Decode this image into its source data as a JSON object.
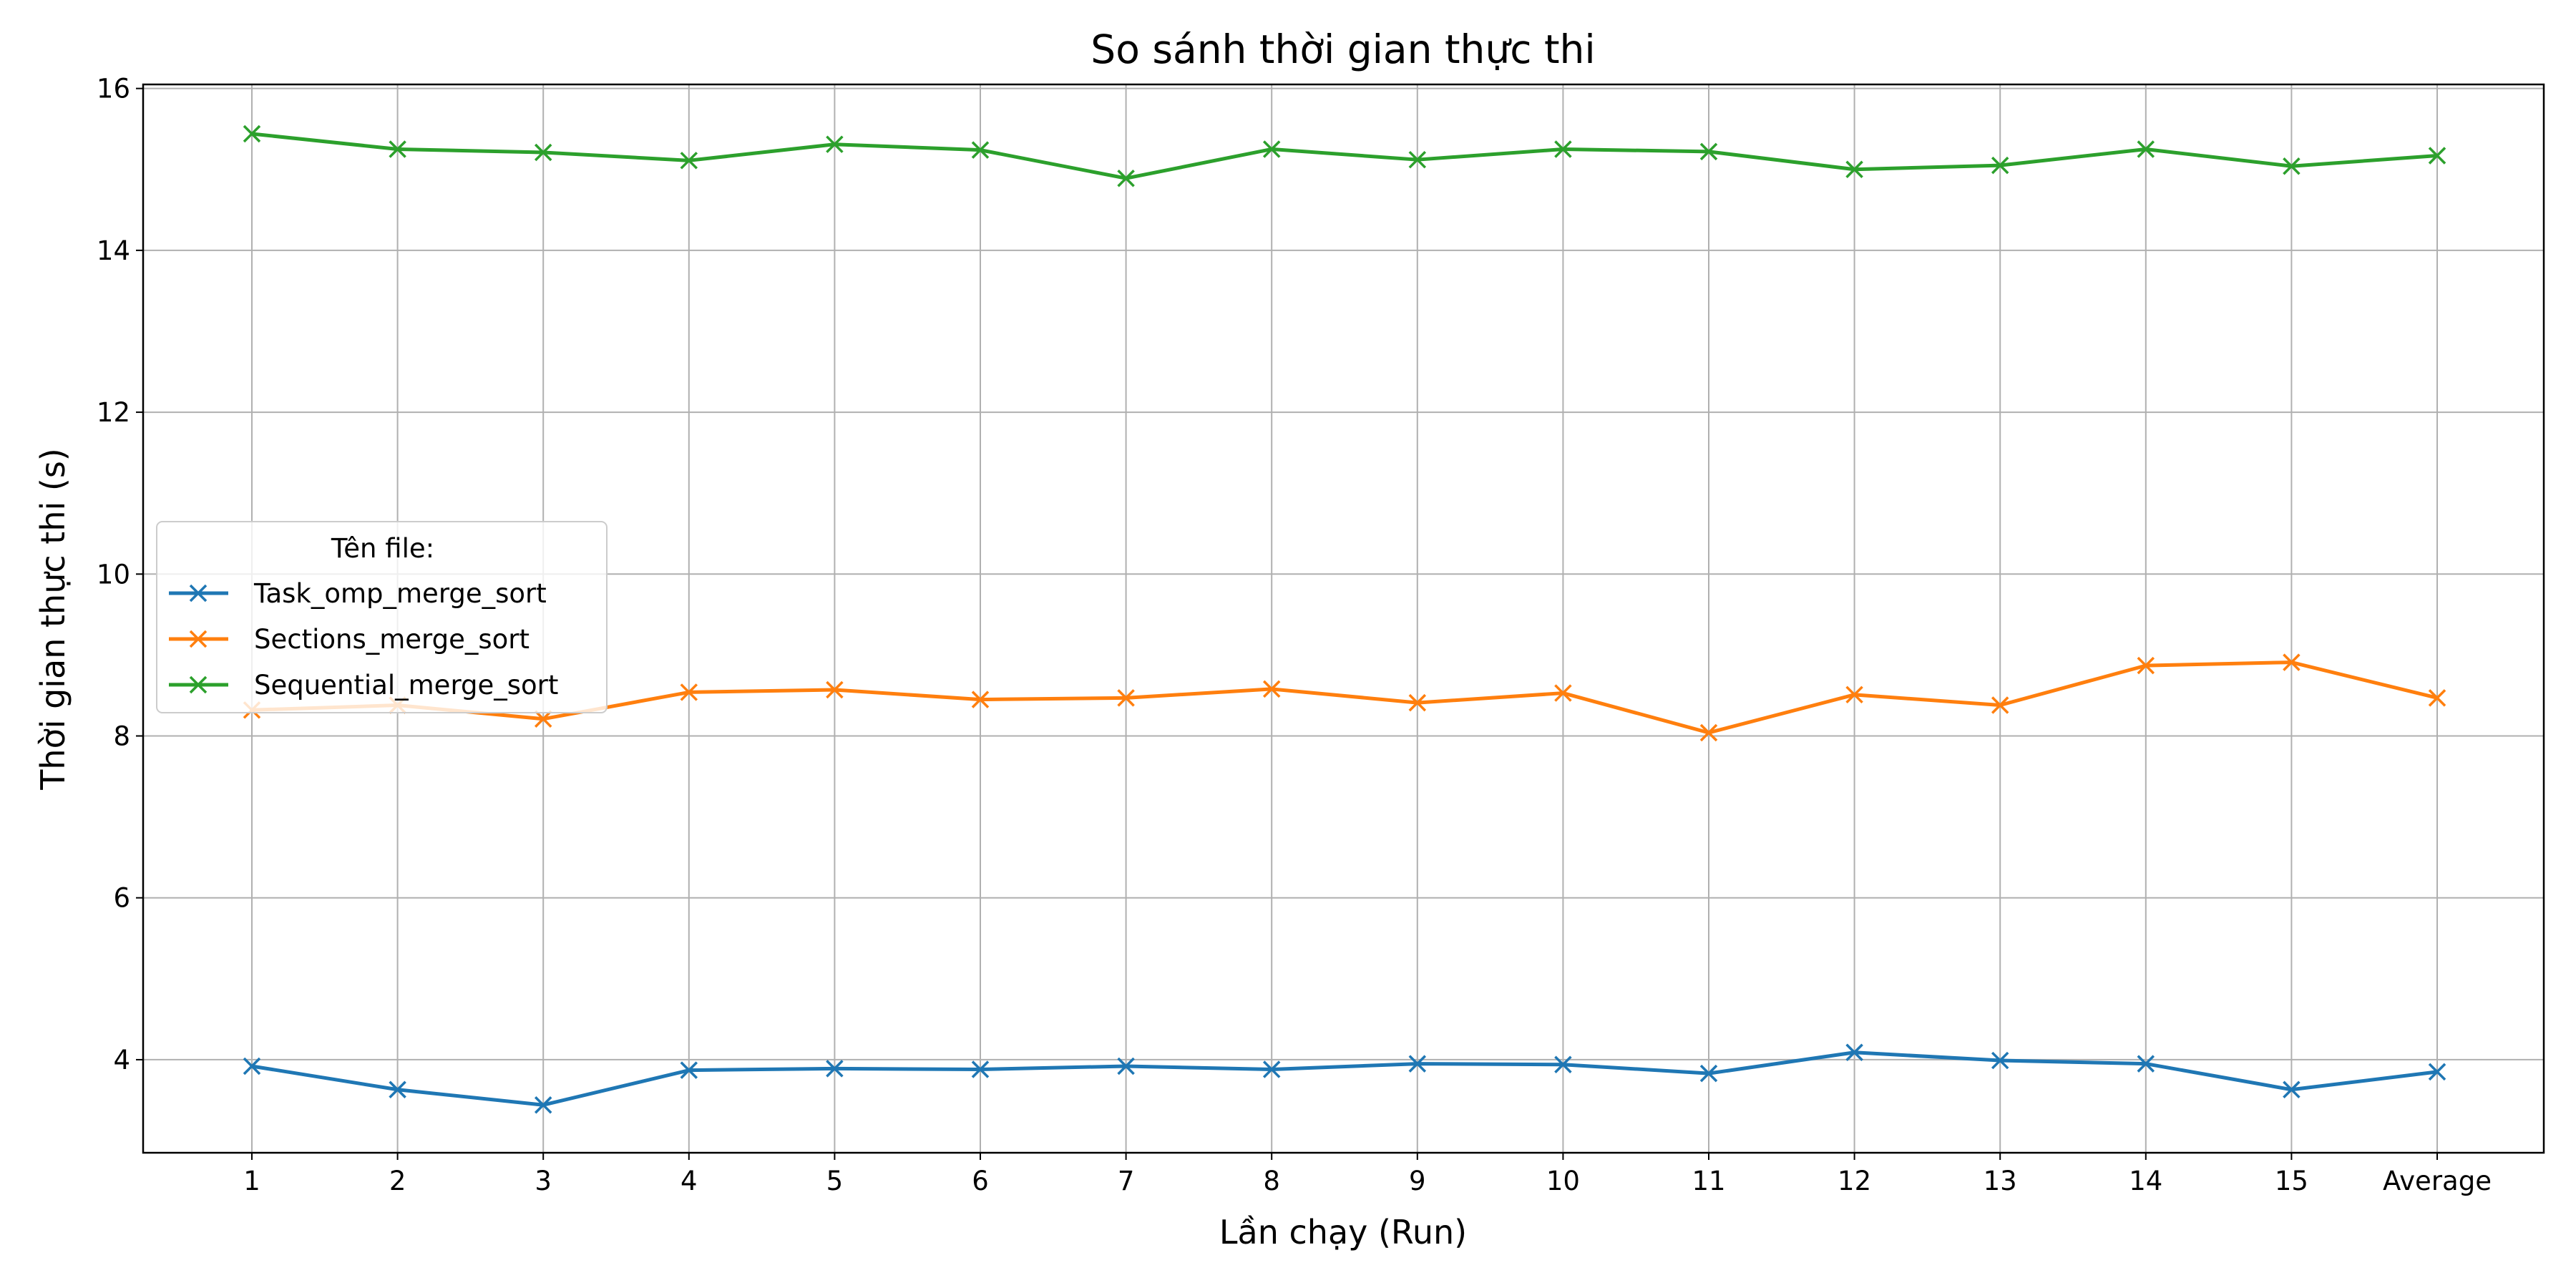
{
  "chart_data": {
    "type": "line",
    "title": "So sánh thời gian thực thi",
    "xlabel": "Lần chạy (Run)",
    "ylabel": "Thời gian thực thi (s)",
    "categories": [
      "1",
      "2",
      "3",
      "4",
      "5",
      "6",
      "7",
      "8",
      "9",
      "10",
      "11",
      "12",
      "13",
      "14",
      "15",
      "Average"
    ],
    "ylim": [
      2.85,
      16.05
    ],
    "yticks": [
      4,
      6,
      8,
      10,
      12,
      14,
      16
    ],
    "grid": true,
    "legend": {
      "title": "Tên file:",
      "placement": "center-left"
    },
    "marker": "x",
    "series": [
      {
        "name": "Task_omp_merge_sort",
        "color": "#1f77b4",
        "values": [
          3.92,
          3.63,
          3.44,
          3.87,
          3.89,
          3.88,
          3.92,
          3.88,
          3.95,
          3.94,
          3.83,
          4.09,
          3.99,
          3.95,
          3.63,
          3.85
        ]
      },
      {
        "name": "Sections_merge_sort",
        "color": "#ff7f0e",
        "values": [
          8.32,
          8.38,
          8.21,
          8.54,
          8.57,
          8.45,
          8.47,
          8.58,
          8.41,
          8.53,
          8.04,
          8.51,
          8.38,
          8.87,
          8.91,
          8.47
        ]
      },
      {
        "name": "Sequential_merge_sort",
        "color": "#2ca02c",
        "values": [
          15.44,
          15.25,
          15.21,
          15.11,
          15.31,
          15.24,
          14.89,
          15.25,
          15.12,
          15.25,
          15.22,
          15.0,
          15.05,
          15.25,
          15.04,
          15.17
        ]
      }
    ]
  }
}
